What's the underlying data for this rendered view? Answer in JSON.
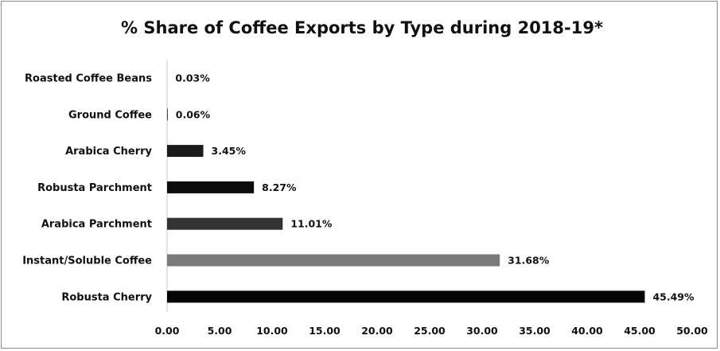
{
  "chart_data": {
    "type": "bar",
    "orientation": "horizontal",
    "title": "% Share of Coffee Exports by Type during 2018-19*",
    "xlabel": "",
    "ylabel": "",
    "categories": [
      "Roasted Coffee Beans",
      "Ground Coffee",
      "Arabica Cherry",
      "Robusta Parchment",
      "Arabica Parchment",
      "Instant/Soluble Coffee",
      "Robusta Cherry"
    ],
    "values": [
      0.03,
      0.06,
      3.45,
      8.27,
      11.01,
      31.68,
      45.49
    ],
    "value_labels": [
      "0.03%",
      "0.06%",
      "3.45%",
      "8.27%",
      "11.01%",
      "31.68%",
      "45.49%"
    ],
    "bar_colors": [
      "#1a1a1a",
      "#1a1a1a",
      "#1a1a1a",
      "#0d0d0d",
      "#333333",
      "#7a7a7a",
      "#050505"
    ],
    "xlim": [
      0,
      50
    ],
    "x_ticks": [
      0,
      5,
      10,
      15,
      20,
      25,
      30,
      35,
      40,
      45,
      50
    ],
    "x_tick_labels": [
      "0.00",
      "5.00",
      "10.00",
      "15.00",
      "20.00",
      "25.00",
      "30.00",
      "35.00",
      "40.00",
      "45.00",
      "50.00"
    ],
    "grid": false,
    "legend": "none"
  }
}
